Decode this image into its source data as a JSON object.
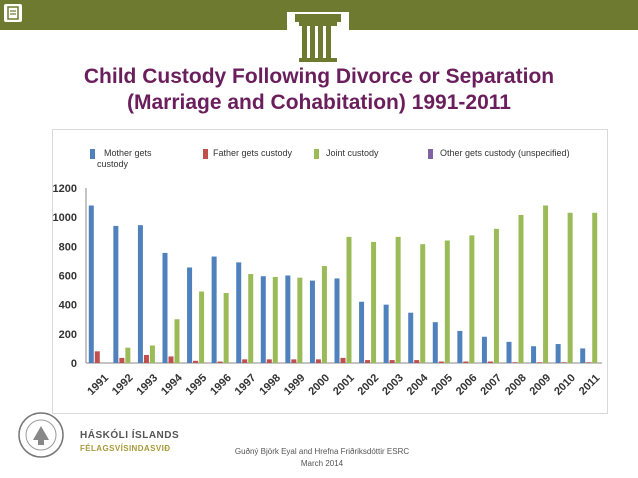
{
  "slide": {
    "title_line1": "Child Custody Following Divorce or Separation",
    "title_line2": "(Marriage and Cohabitation) 1991-2011",
    "footer_line1": "Guðný Björk Eyal and Hrefna Friðriksdóttir ESRC",
    "footer_line2": "March 2014",
    "university_name": "HÁSKÓLI ÍSLANDS",
    "department": "FÉLAGSVÍSINDASVIÐ",
    "university_seal_text": "UNIVERSITAS ISLANDIAE",
    "accent_color": "#6a1f5c",
    "bar_color": "#6d7a2f"
  },
  "chart_data": {
    "type": "bar",
    "title": "",
    "xlabel": "",
    "ylabel": "",
    "ylim": [
      0,
      1200
    ],
    "yticks": [
      "0",
      "200",
      "400",
      "600",
      "800",
      "1000",
      "1200"
    ],
    "categories": [
      "1991",
      "1992",
      "1993",
      "1994",
      "1995",
      "1996",
      "1997",
      "1998",
      "1999",
      "2000",
      "2001",
      "2002",
      "2003",
      "2004",
      "2005",
      "2006",
      "2007",
      "2008",
      "2009",
      "2010",
      "2011"
    ],
    "legend_position": "top",
    "series": [
      {
        "name": "Mother gets custody",
        "color": "#4f81bd",
        "values": [
          1080,
          940,
          945,
          755,
          655,
          730,
          690,
          595,
          600,
          565,
          580,
          420,
          400,
          345,
          280,
          220,
          180,
          145,
          115,
          130,
          100
        ]
      },
      {
        "name": "Father gets custody",
        "color": "#c0504d",
        "values": [
          80,
          35,
          55,
          45,
          15,
          10,
          25,
          25,
          25,
          25,
          35,
          20,
          20,
          20,
          10,
          10,
          10,
          5,
          5,
          5,
          5
        ]
      },
      {
        "name": "Joint custody",
        "color": "#9bbb59",
        "values": [
          0,
          105,
          120,
          300,
          490,
          480,
          610,
          590,
          585,
          665,
          865,
          830,
          865,
          815,
          840,
          875,
          920,
          1015,
          1080,
          1030,
          1030
        ]
      },
      {
        "name": "Other gets custody (unspecified)",
        "color": "#8064a2",
        "values": [
          0,
          0,
          0,
          0,
          0,
          0,
          0,
          0,
          0,
          0,
          0,
          0,
          0,
          0,
          0,
          0,
          0,
          0,
          0,
          0,
          0
        ]
      }
    ]
  }
}
